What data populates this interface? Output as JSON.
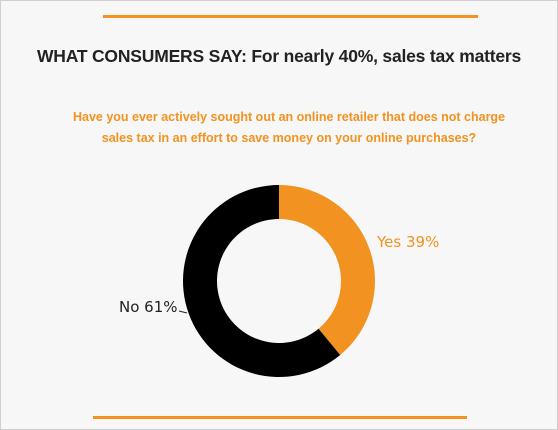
{
  "header": {
    "title": "WHAT CONSUMERS SAY: For nearly 40%, sales tax matters",
    "question": "Have you ever actively sought out an online retailer that does not charge sales tax in an effort to save money on your online purchases?"
  },
  "colors": {
    "accent": "#f29220",
    "dark": "#000000"
  },
  "chart_data": {
    "type": "pie",
    "donut": true,
    "categories": [
      "Yes",
      "No"
    ],
    "values": [
      39,
      61
    ],
    "labels": [
      "Yes 39%",
      "No 61%"
    ],
    "colors": [
      "#f29220",
      "#000000"
    ]
  }
}
